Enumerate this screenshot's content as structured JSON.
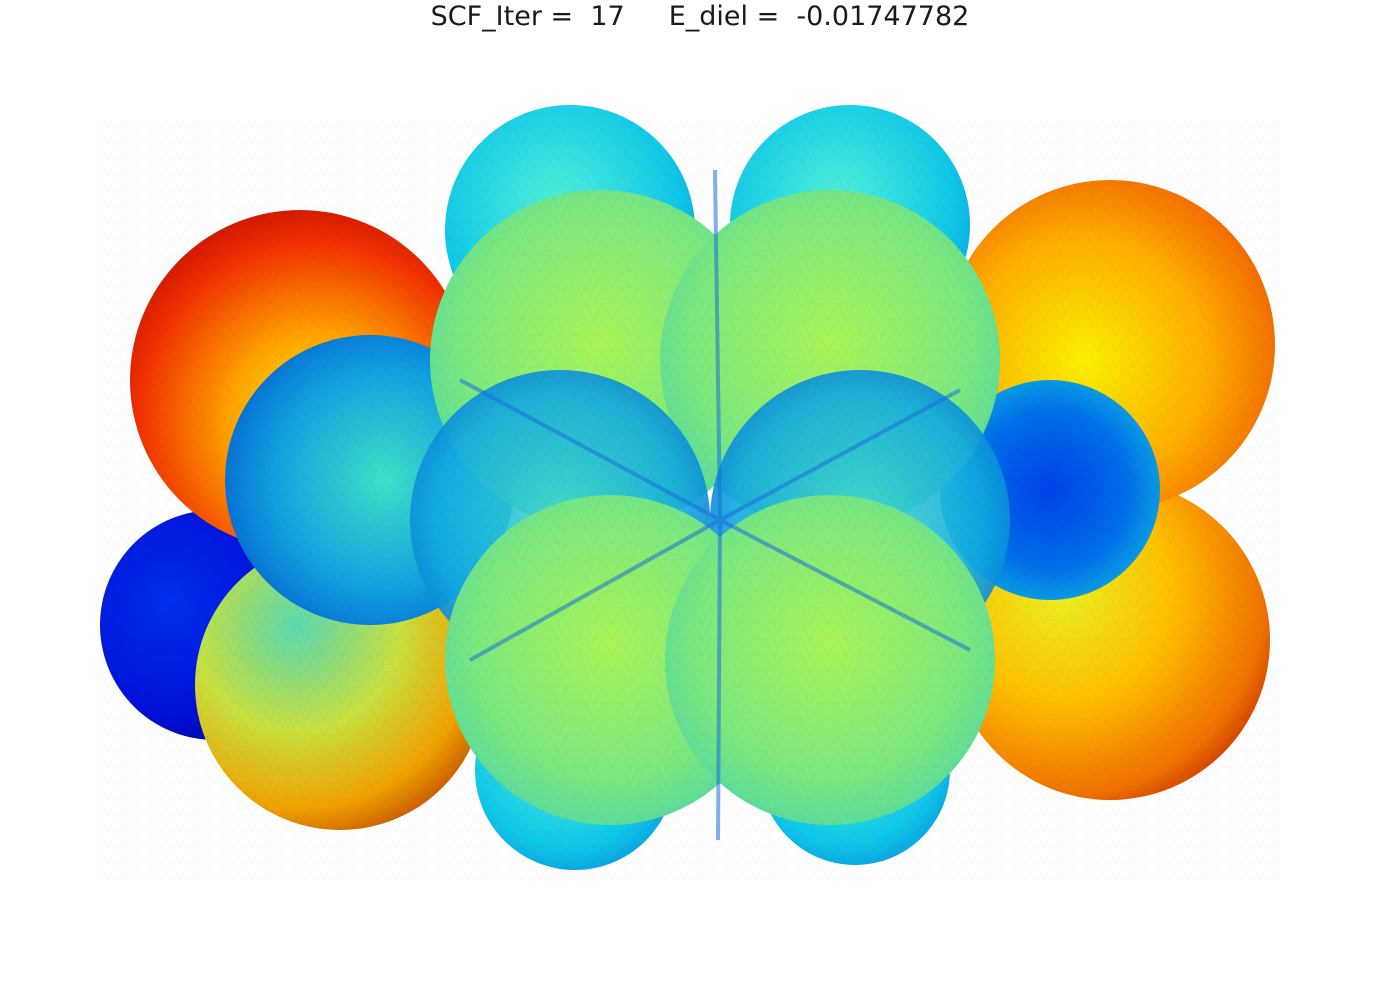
{
  "header": {
    "iteration_label": "SCF_Iter =",
    "iteration_value": "17",
    "energy_label": "E_diel =",
    "energy_value": "-0.01747782"
  },
  "colormap": {
    "name": "jet",
    "stops": [
      "#0000c8",
      "#0060ff",
      "#00c8e6",
      "#8cf064",
      "#f0f000",
      "#ff8c00",
      "#e60000"
    ]
  }
}
